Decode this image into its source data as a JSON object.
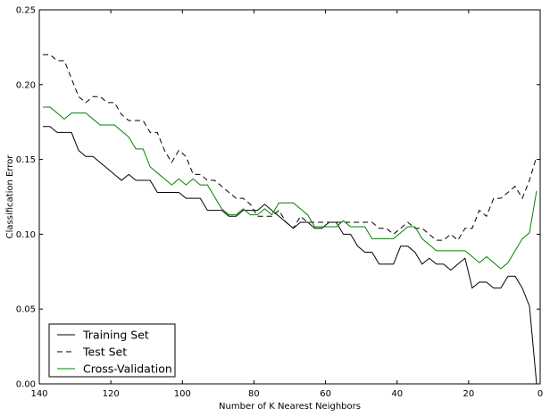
{
  "chart_data": {
    "type": "line",
    "xlabel": "Number of K Nearest Neighbors",
    "ylabel": "Classification Error",
    "xlim": [
      140,
      0
    ],
    "ylim": [
      0,
      0.25
    ],
    "x_ticks": [
      "140",
      "120",
      "100",
      "80",
      "60",
      "40",
      "20",
      "0"
    ],
    "y_ticks": [
      "0.00",
      "0.05",
      "0.10",
      "0.15",
      "0.20",
      "0.25"
    ],
    "legend_position": "bottom-left",
    "grid": false,
    "series": [
      {
        "name": "Training Set",
        "color": "#000000",
        "dash": "solid",
        "points": [
          [
            139,
            0.172
          ],
          [
            137,
            0.172
          ],
          [
            135,
            0.168
          ],
          [
            133,
            0.168
          ],
          [
            131,
            0.168
          ],
          [
            129,
            0.156
          ],
          [
            127,
            0.152
          ],
          [
            125,
            0.152
          ],
          [
            123,
            0.148
          ],
          [
            121,
            0.144
          ],
          [
            119,
            0.14
          ],
          [
            117,
            0.136
          ],
          [
            115,
            0.14
          ],
          [
            113,
            0.136
          ],
          [
            111,
            0.136
          ],
          [
            109,
            0.136
          ],
          [
            107,
            0.128
          ],
          [
            105,
            0.128
          ],
          [
            103,
            0.128
          ],
          [
            101,
            0.128
          ],
          [
            99,
            0.124
          ],
          [
            97,
            0.124
          ],
          [
            95,
            0.124
          ],
          [
            93,
            0.116
          ],
          [
            91,
            0.116
          ],
          [
            89,
            0.116
          ],
          [
            87,
            0.112
          ],
          [
            85,
            0.112
          ],
          [
            83,
            0.116
          ],
          [
            81,
            0.116
          ],
          [
            79,
            0.116
          ],
          [
            77,
            0.12
          ],
          [
            75,
            0.116
          ],
          [
            73,
            0.112
          ],
          [
            71,
            0.108
          ],
          [
            69,
            0.104
          ],
          [
            67,
            0.108
          ],
          [
            65,
            0.108
          ],
          [
            63,
            0.104
          ],
          [
            61,
            0.104
          ],
          [
            59,
            0.108
          ],
          [
            57,
            0.108
          ],
          [
            55,
            0.1
          ],
          [
            53,
            0.1
          ],
          [
            51,
            0.092
          ],
          [
            49,
            0.088
          ],
          [
            47,
            0.088
          ],
          [
            45,
            0.08
          ],
          [
            43,
            0.08
          ],
          [
            41,
            0.08
          ],
          [
            39,
            0.092
          ],
          [
            37,
            0.092
          ],
          [
            35,
            0.088
          ],
          [
            33,
            0.08
          ],
          [
            31,
            0.084
          ],
          [
            29,
            0.08
          ],
          [
            27,
            0.08
          ],
          [
            25,
            0.076
          ],
          [
            23,
            0.08
          ],
          [
            21,
            0.084
          ],
          [
            19,
            0.064
          ],
          [
            17,
            0.068
          ],
          [
            15,
            0.068
          ],
          [
            13,
            0.064
          ],
          [
            11,
            0.064
          ],
          [
            9,
            0.072
          ],
          [
            7,
            0.072
          ],
          [
            5,
            0.064
          ],
          [
            3,
            0.052
          ],
          [
            1,
            0.0
          ]
        ]
      },
      {
        "name": "Test Set",
        "color": "#000000",
        "dash": "dashed",
        "points": [
          [
            139,
            0.22
          ],
          [
            137,
            0.22
          ],
          [
            135,
            0.216
          ],
          [
            133,
            0.216
          ],
          [
            131,
            0.204
          ],
          [
            129,
            0.192
          ],
          [
            127,
            0.188
          ],
          [
            125,
            0.192
          ],
          [
            123,
            0.192
          ],
          [
            121,
            0.188
          ],
          [
            119,
            0.188
          ],
          [
            117,
            0.18
          ],
          [
            115,
            0.176
          ],
          [
            113,
            0.176
          ],
          [
            111,
            0.176
          ],
          [
            109,
            0.168
          ],
          [
            107,
            0.168
          ],
          [
            105,
            0.156
          ],
          [
            103,
            0.148
          ],
          [
            101,
            0.156
          ],
          [
            99,
            0.152
          ],
          [
            97,
            0.14
          ],
          [
            95,
            0.14
          ],
          [
            93,
            0.136
          ],
          [
            91,
            0.136
          ],
          [
            89,
            0.132
          ],
          [
            87,
            0.128
          ],
          [
            85,
            0.124
          ],
          [
            83,
            0.124
          ],
          [
            81,
            0.12
          ],
          [
            79,
            0.112
          ],
          [
            77,
            0.112
          ],
          [
            75,
            0.112
          ],
          [
            73,
            0.116
          ],
          [
            71,
            0.108
          ],
          [
            69,
            0.104
          ],
          [
            67,
            0.112
          ],
          [
            65,
            0.108
          ],
          [
            63,
            0.108
          ],
          [
            61,
            0.108
          ],
          [
            59,
            0.108
          ],
          [
            57,
            0.108
          ],
          [
            55,
            0.108
          ],
          [
            53,
            0.108
          ],
          [
            51,
            0.108
          ],
          [
            49,
            0.108
          ],
          [
            47,
            0.108
          ],
          [
            45,
            0.104
          ],
          [
            43,
            0.104
          ],
          [
            41,
            0.1
          ],
          [
            39,
            0.104
          ],
          [
            37,
            0.108
          ],
          [
            35,
            0.104
          ],
          [
            33,
            0.104
          ],
          [
            31,
            0.1
          ],
          [
            29,
            0.096
          ],
          [
            27,
            0.096
          ],
          [
            25,
            0.1
          ],
          [
            23,
            0.096
          ],
          [
            21,
            0.104
          ],
          [
            19,
            0.104
          ],
          [
            17,
            0.116
          ],
          [
            15,
            0.112
          ],
          [
            13,
            0.124
          ],
          [
            11,
            0.124
          ],
          [
            9,
            0.128
          ],
          [
            7,
            0.132
          ],
          [
            5,
            0.124
          ],
          [
            3,
            0.136
          ],
          [
            1,
            0.152
          ]
        ]
      },
      {
        "name": "Cross-Validation",
        "color": "#008000",
        "dash": "solid",
        "points": [
          [
            139,
            0.185
          ],
          [
            137,
            0.185
          ],
          [
            135,
            0.181
          ],
          [
            133,
            0.177
          ],
          [
            131,
            0.181
          ],
          [
            129,
            0.181
          ],
          [
            127,
            0.181
          ],
          [
            125,
            0.177
          ],
          [
            123,
            0.173
          ],
          [
            121,
            0.173
          ],
          [
            119,
            0.173
          ],
          [
            117,
            0.169
          ],
          [
            115,
            0.165
          ],
          [
            113,
            0.157
          ],
          [
            111,
            0.157
          ],
          [
            109,
            0.145
          ],
          [
            107,
            0.141
          ],
          [
            105,
            0.137
          ],
          [
            103,
            0.133
          ],
          [
            101,
            0.137
          ],
          [
            99,
            0.133
          ],
          [
            97,
            0.137
          ],
          [
            95,
            0.133
          ],
          [
            93,
            0.133
          ],
          [
            91,
            0.125
          ],
          [
            89,
            0.117
          ],
          [
            87,
            0.113
          ],
          [
            85,
            0.113
          ],
          [
            83,
            0.117
          ],
          [
            81,
            0.113
          ],
          [
            79,
            0.113
          ],
          [
            77,
            0.117
          ],
          [
            75,
            0.113
          ],
          [
            73,
            0.121
          ],
          [
            71,
            0.121
          ],
          [
            69,
            0.121
          ],
          [
            67,
            0.117
          ],
          [
            65,
            0.113
          ],
          [
            63,
            0.105
          ],
          [
            61,
            0.105
          ],
          [
            59,
            0.105
          ],
          [
            57,
            0.105
          ],
          [
            55,
            0.109
          ],
          [
            53,
            0.105
          ],
          [
            51,
            0.105
          ],
          [
            49,
            0.105
          ],
          [
            47,
            0.097
          ],
          [
            45,
            0.097
          ],
          [
            43,
            0.097
          ],
          [
            41,
            0.097
          ],
          [
            39,
            0.101
          ],
          [
            37,
            0.105
          ],
          [
            35,
            0.105
          ],
          [
            33,
            0.097
          ],
          [
            31,
            0.093
          ],
          [
            29,
            0.089
          ],
          [
            27,
            0.089
          ],
          [
            25,
            0.089
          ],
          [
            23,
            0.089
          ],
          [
            21,
            0.089
          ],
          [
            19,
            0.085
          ],
          [
            17,
            0.081
          ],
          [
            15,
            0.085
          ],
          [
            13,
            0.081
          ],
          [
            11,
            0.077
          ],
          [
            9,
            0.081
          ],
          [
            7,
            0.089
          ],
          [
            5,
            0.097
          ],
          [
            3,
            0.101
          ],
          [
            1,
            0.129
          ]
        ]
      }
    ]
  }
}
